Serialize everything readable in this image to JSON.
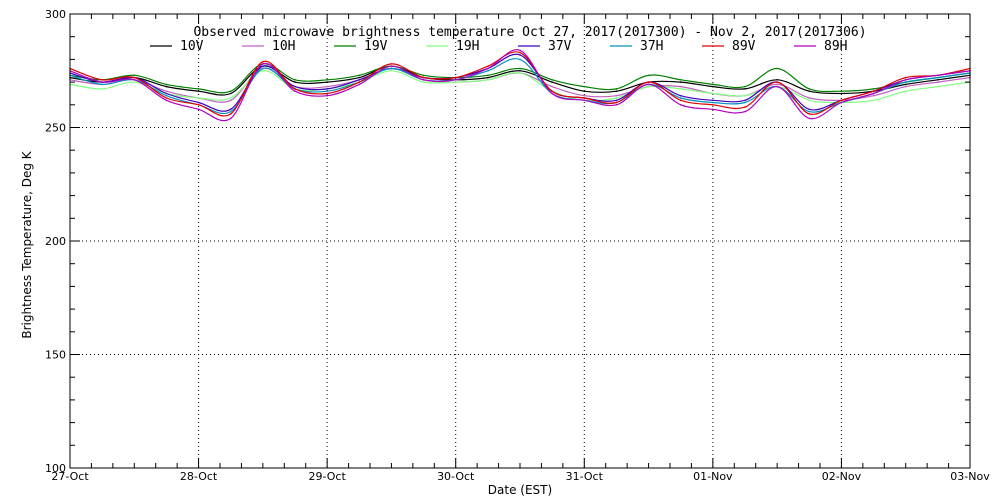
{
  "chart_data": {
    "type": "line",
    "title": "Observed microwave brightness temperature Oct 27, 2017(2017300) - Nov  2, 2017(2017306)",
    "xlabel": "Date (EST)",
    "ylabel": "Brightness Temperature, Deg K",
    "xlim": [
      0,
      7
    ],
    "ylim": [
      100,
      300
    ],
    "x_ticks": [
      {
        "value": 0,
        "label": "27-Oct"
      },
      {
        "value": 1,
        "label": "28-Oct"
      },
      {
        "value": 2,
        "label": "29-Oct"
      },
      {
        "value": 3,
        "label": "30-Oct"
      },
      {
        "value": 4,
        "label": "31-Oct"
      },
      {
        "value": 5,
        "label": "01-Nov"
      },
      {
        "value": 6,
        "label": "02-Nov"
      },
      {
        "value": 7,
        "label": "03-Nov"
      }
    ],
    "y_ticks": [
      {
        "value": 100,
        "label": "100"
      },
      {
        "value": 150,
        "label": "150"
      },
      {
        "value": 200,
        "label": "200"
      },
      {
        "value": 250,
        "label": "250"
      },
      {
        "value": 300,
        "label": "300"
      }
    ],
    "grid": true,
    "legend": "top",
    "x": [
      0,
      0.25,
      0.5,
      0.75,
      1,
      1.25,
      1.5,
      1.75,
      2,
      2.25,
      2.5,
      2.75,
      3,
      3.25,
      3.5,
      3.75,
      4,
      4.25,
      4.5,
      4.75,
      5,
      5.25,
      5.5,
      5.75,
      6,
      6.25,
      6.5,
      6.75,
      7
    ],
    "series": [
      {
        "name": "10V",
        "color": "#000000",
        "values": [
          272,
          270,
          272,
          268,
          266,
          265,
          277,
          270,
          270,
          272,
          277,
          272,
          271,
          272,
          275,
          270,
          266,
          266,
          270,
          270,
          268,
          267,
          271,
          266,
          265,
          266,
          269,
          271,
          273
        ]
      },
      {
        "name": "10H",
        "color": "#c060c0",
        "values": [
          271,
          269,
          271,
          266,
          263,
          262,
          276,
          268,
          268,
          271,
          276,
          271,
          270,
          271,
          274,
          268,
          264,
          264,
          268,
          268,
          265,
          264,
          269,
          263,
          262,
          264,
          268,
          270,
          272
        ]
      },
      {
        "name": "19V",
        "color": "#008000",
        "values": [
          273,
          271,
          273,
          269,
          267,
          266,
          278,
          271,
          271,
          273,
          277,
          273,
          272,
          273,
          276,
          271,
          268,
          267,
          273,
          271,
          269,
          268,
          276,
          267,
          266,
          267,
          270,
          272,
          274
        ]
      },
      {
        "name": "19H",
        "color": "#80ff80",
        "values": [
          269,
          267,
          270,
          265,
          263,
          263,
          275,
          267,
          267,
          270,
          275,
          270,
          270,
          271,
          274,
          266,
          262,
          263,
          268,
          267,
          265,
          264,
          268,
          262,
          261,
          262,
          266,
          268,
          270
        ]
      },
      {
        "name": "37V",
        "color": "#4000c0",
        "values": [
          274,
          270,
          272,
          265,
          261,
          258,
          277,
          268,
          267,
          271,
          276,
          272,
          272,
          276,
          282,
          266,
          263,
          262,
          270,
          264,
          262,
          262,
          270,
          258,
          262,
          266,
          271,
          273,
          275
        ]
      },
      {
        "name": "37H",
        "color": "#0090c0",
        "values": [
          273,
          269,
          271,
          264,
          260,
          257,
          276,
          267,
          266,
          270,
          276,
          271,
          271,
          275,
          280,
          265,
          262,
          261,
          269,
          263,
          261,
          261,
          268,
          257,
          261,
          265,
          270,
          272,
          274
        ]
      },
      {
        "name": "89V",
        "color": "#e00000",
        "values": [
          276,
          271,
          272,
          263,
          260,
          256,
          279,
          267,
          265,
          270,
          278,
          272,
          272,
          277,
          283,
          266,
          263,
          261,
          270,
          262,
          260,
          259,
          270,
          256,
          262,
          266,
          272,
          273,
          276
        ]
      },
      {
        "name": "89H",
        "color": "#b000c0",
        "values": [
          275,
          270,
          271,
          262,
          258,
          254,
          278,
          266,
          264,
          269,
          277,
          271,
          271,
          276,
          284,
          265,
          262,
          260,
          269,
          260,
          258,
          257,
          268,
          254,
          261,
          265,
          271,
          273,
          275
        ]
      }
    ]
  }
}
